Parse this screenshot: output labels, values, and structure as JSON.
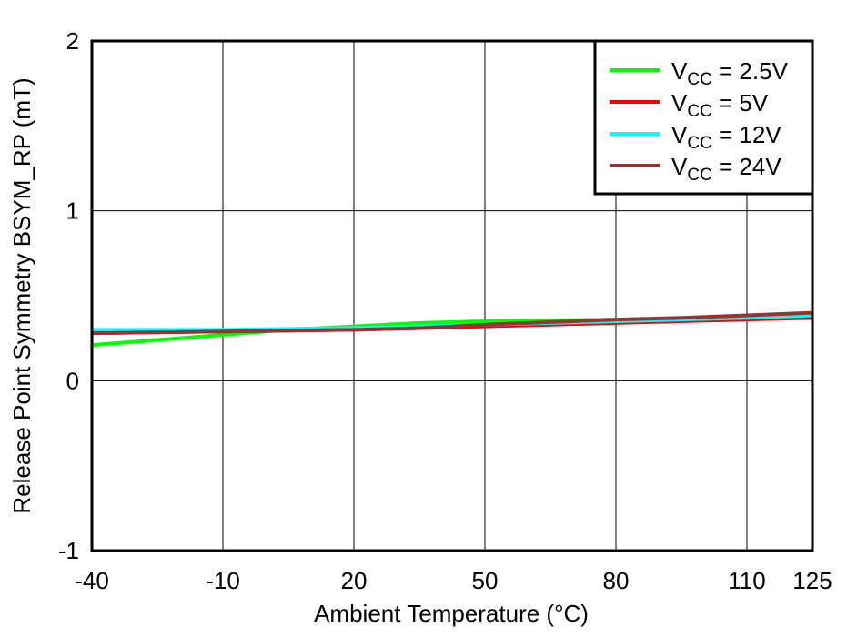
{
  "chart_data": {
    "type": "line",
    "xlabel": "Ambient Temperature (°C)",
    "ylabel": "Release Point Symmetry BSYM_RP (mT)",
    "xlim": [
      -40,
      125
    ],
    "ylim": [
      -1,
      2
    ],
    "xticks": [
      -40,
      -10,
      20,
      50,
      80,
      110,
      125
    ],
    "yticks": [
      -1,
      0,
      1,
      2
    ],
    "grid": true,
    "legend_position": "top-right",
    "x": [
      -40,
      -25,
      -10,
      5,
      20,
      35,
      50,
      65,
      80,
      95,
      110,
      125
    ],
    "series": [
      {
        "name_main": "V",
        "name_sub": "CC",
        "name_rest": " = 2.5V",
        "color": "#00ff00",
        "values": [
          0.21,
          0.24,
          0.27,
          0.3,
          0.32,
          0.34,
          0.35,
          0.355,
          0.36,
          0.365,
          0.37,
          0.375
        ]
      },
      {
        "name_main": "V",
        "name_sub": "CC",
        "name_rest": " = 5V",
        "color": "#ff0000",
        "values": [
          0.28,
          0.285,
          0.29,
          0.295,
          0.3,
          0.31,
          0.32,
          0.33,
          0.34,
          0.35,
          0.36,
          0.37
        ]
      },
      {
        "name_main": "V",
        "name_sub": "CC",
        "name_rest": " = 12V",
        "color": "#00ffff",
        "values": [
          0.3,
          0.3,
          0.3,
          0.305,
          0.31,
          0.32,
          0.33,
          0.34,
          0.35,
          0.36,
          0.37,
          0.385
        ]
      },
      {
        "name_main": "V",
        "name_sub": "CC",
        "name_rest": " = 24V",
        "color": "#993333",
        "values": [
          0.28,
          0.285,
          0.29,
          0.295,
          0.3,
          0.31,
          0.33,
          0.345,
          0.36,
          0.37,
          0.385,
          0.4
        ]
      }
    ]
  }
}
